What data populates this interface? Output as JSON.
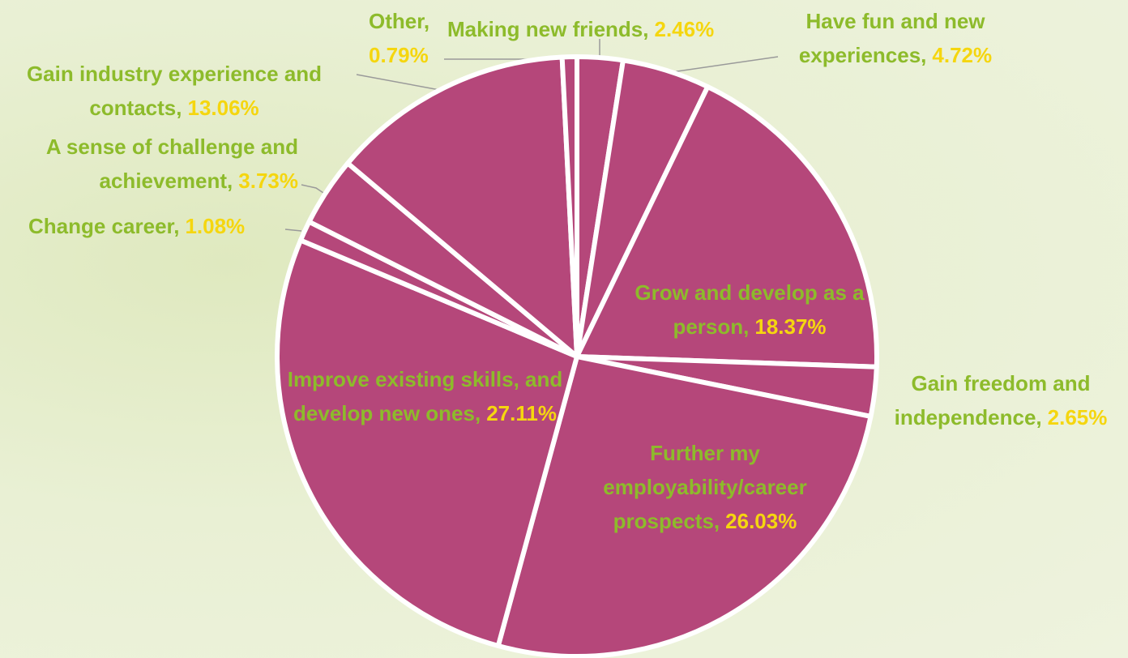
{
  "chart_data": {
    "type": "pie",
    "categories": [
      "Making new friends,",
      "Have fun and new experiences,",
      "Grow and develop as a person,",
      "Gain freedom and independence,",
      "Further my employability/career prospects,",
      "Improve existing skills, and develop new ones,",
      "Change career,",
      "A sense of challenge and achievement,",
      "Gain industry experience and contacts,",
      "Other,"
    ],
    "values": [
      2.46,
      4.72,
      18.37,
      2.65,
      26.03,
      27.11,
      1.08,
      3.73,
      13.06,
      0.79
    ],
    "value_labels": [
      "2.46%",
      "4.72%",
      "18.37%",
      "2.65%",
      "26.03%",
      "27.11%",
      "1.08%",
      "3.73%",
      "13.06%",
      "0.79%"
    ],
    "color": "#b5477a"
  }
}
